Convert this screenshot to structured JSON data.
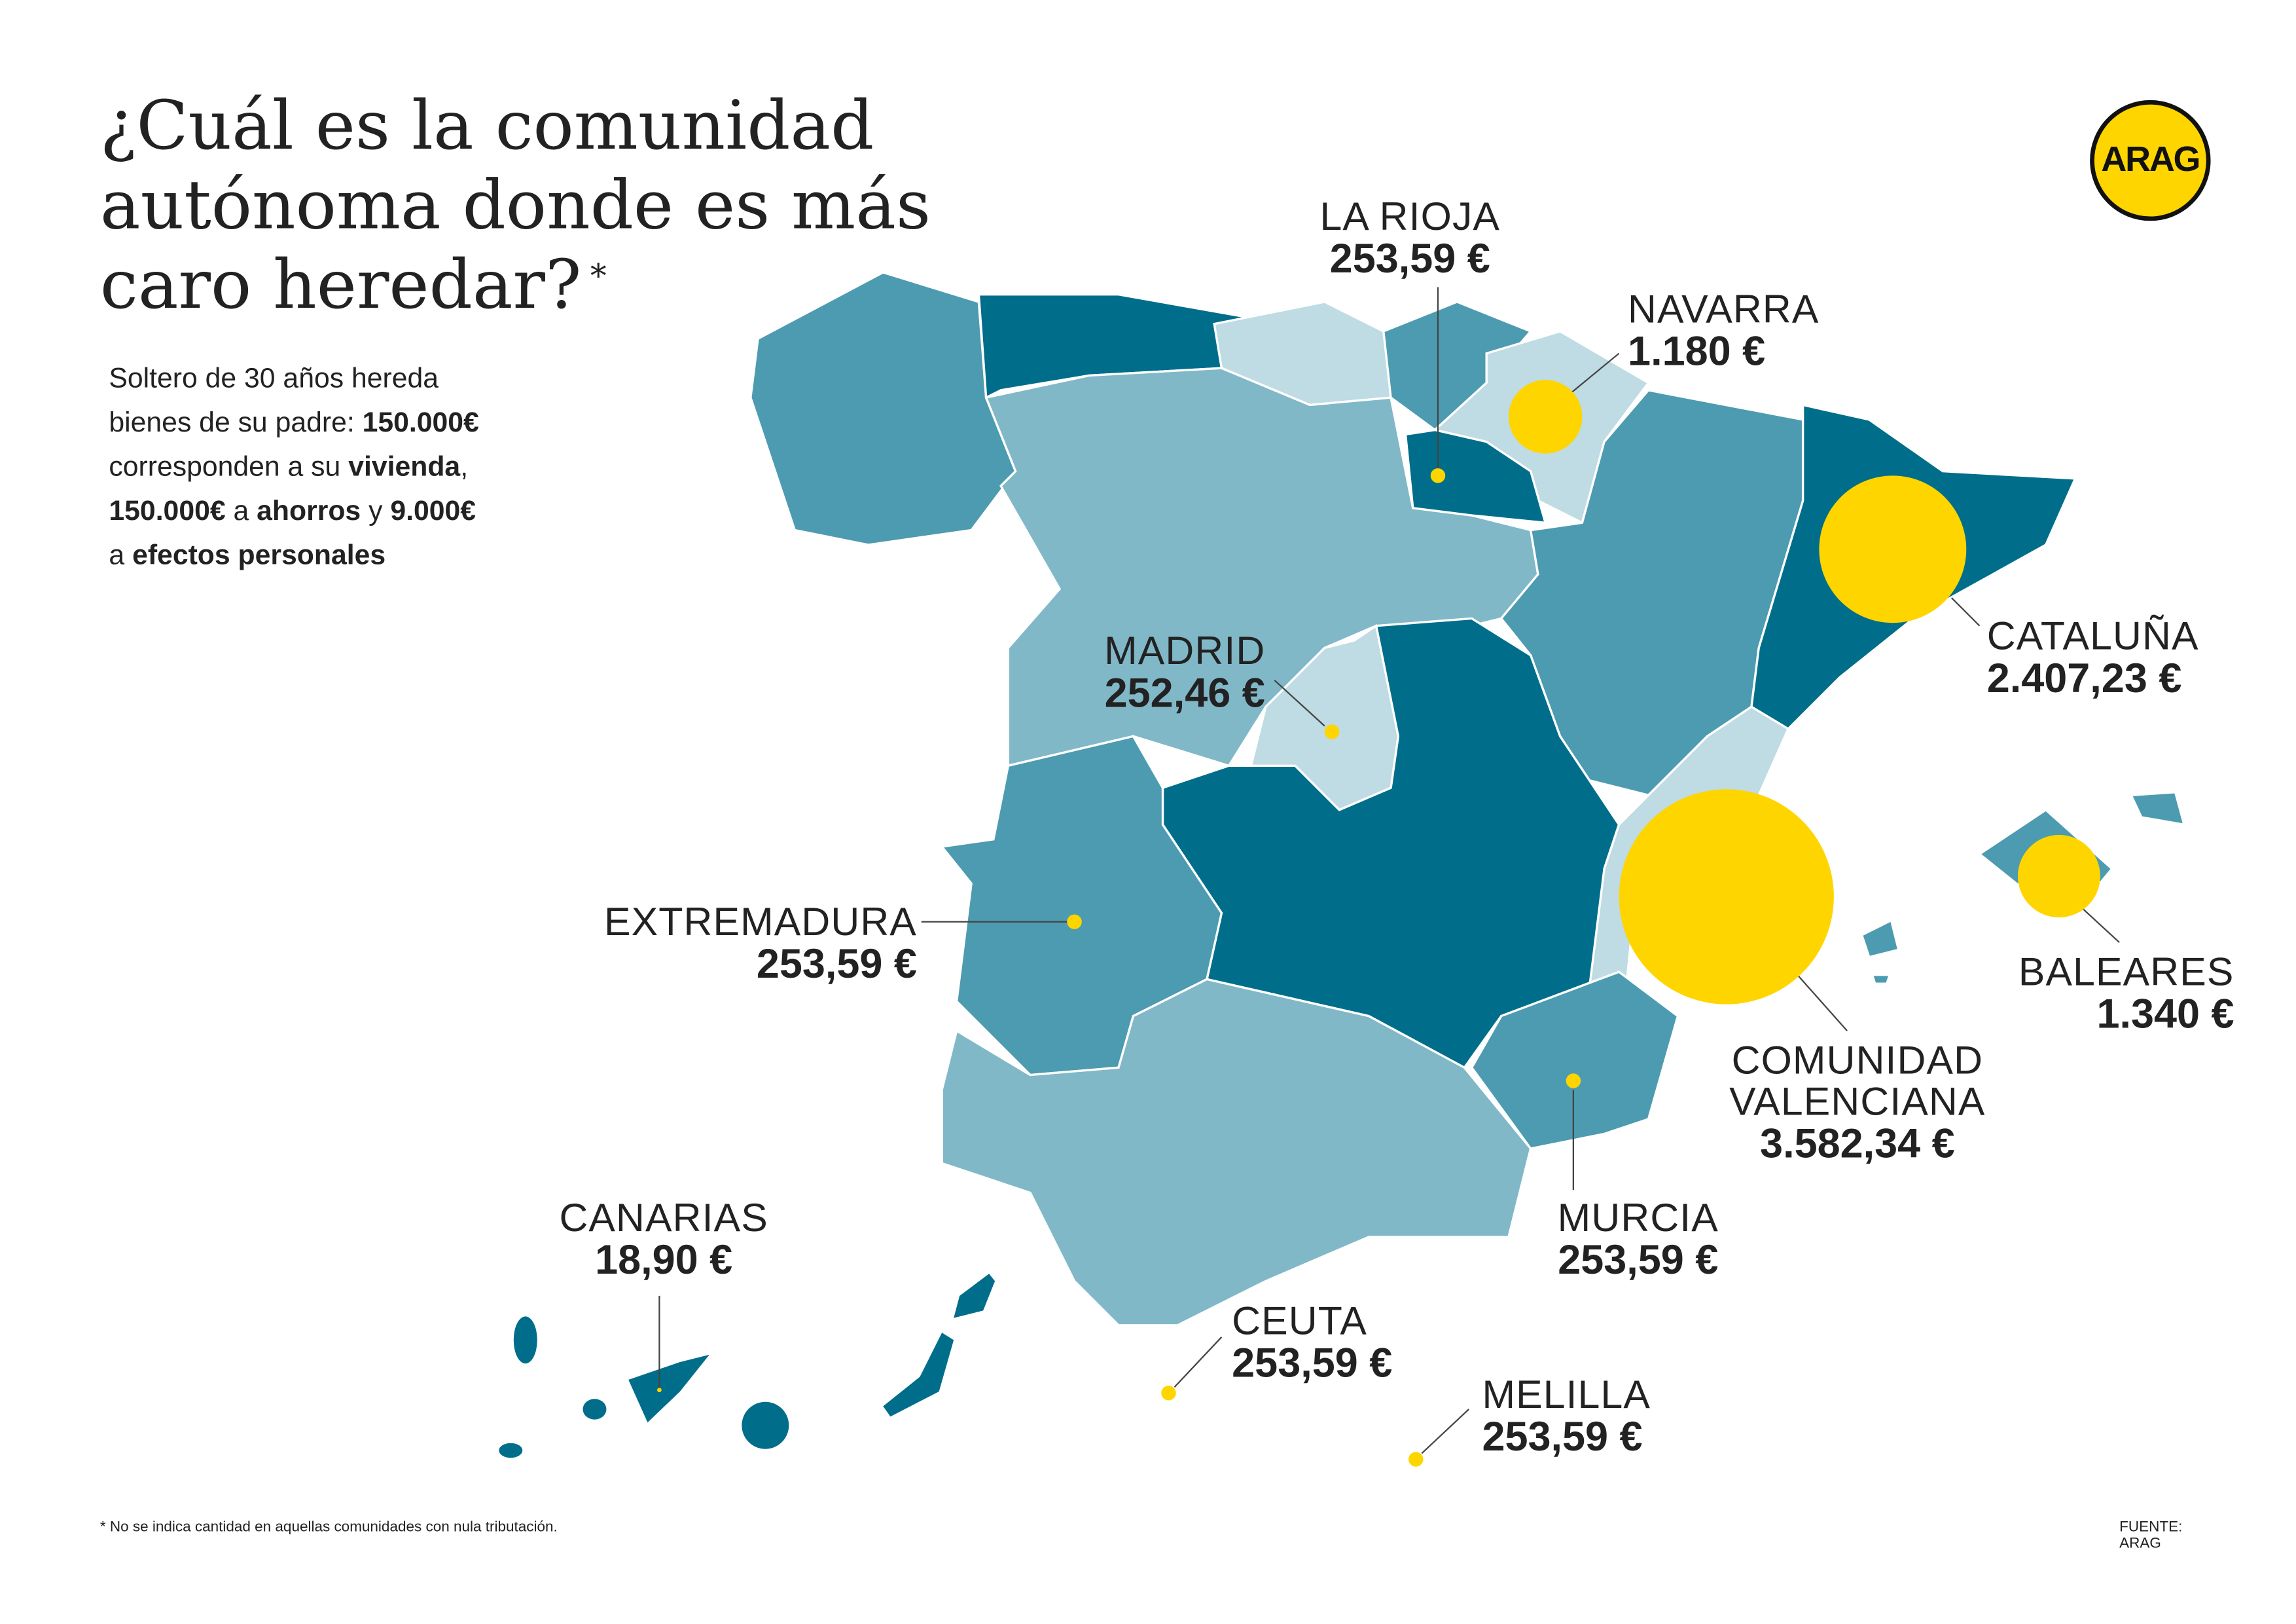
{
  "title": "¿Cuál es la comunidad autónoma donde es más caro heredar?",
  "title_mark": "*",
  "subtitle": {
    "l1": "Soltero de 30 años hereda",
    "l2a": "bienes de su padre: ",
    "l2b": "150.000€",
    "l3a": "corresponden a su ",
    "l3b": "vivienda",
    "l3c": ",",
    "l4a": "150.000€",
    "l4b": " a ",
    "l4c": "ahorros",
    "l4d": " y ",
    "l4e": "9.000€",
    "l5a": "a ",
    "l5b": "efectos personales"
  },
  "logo": "ARAG",
  "colors": {
    "dark": "#006e8a",
    "mid": "#4d9bb0",
    "light": "#80b8c8",
    "lightest": "#bfdbe3",
    "bubble": "#ffd500"
  },
  "regions": {
    "la_rioja": {
      "name": "LA RIOJA",
      "value": "253,59 €"
    },
    "navarra": {
      "name": "NAVARRA",
      "value": "1.180 €"
    },
    "cataluna": {
      "name": "CATALUÑA",
      "value": "2.407,23 €"
    },
    "madrid": {
      "name": "MADRID",
      "value": "252,46 €"
    },
    "extremadura": {
      "name": "EXTREMADURA",
      "value": "253,59 €"
    },
    "baleares": {
      "name": "BALEARES",
      "value": "1.340 €"
    },
    "valenciana": {
      "name1": "COMUNIDAD",
      "name2": "VALENCIANA",
      "value": "3.582,34 €"
    },
    "murcia": {
      "name": "MURCIA",
      "value": "253,59 €"
    },
    "canarias": {
      "name": "CANARIAS",
      "value": "18,90 €"
    },
    "ceuta": {
      "name": "CEUTA",
      "value": "253,59 €"
    },
    "melilla": {
      "name": "MELILLA",
      "value": "253,59 €"
    }
  },
  "footnote": "* No se indica cantidad en aquellas comunidades con nula tributación.",
  "source": "FUENTE: ARAG"
}
